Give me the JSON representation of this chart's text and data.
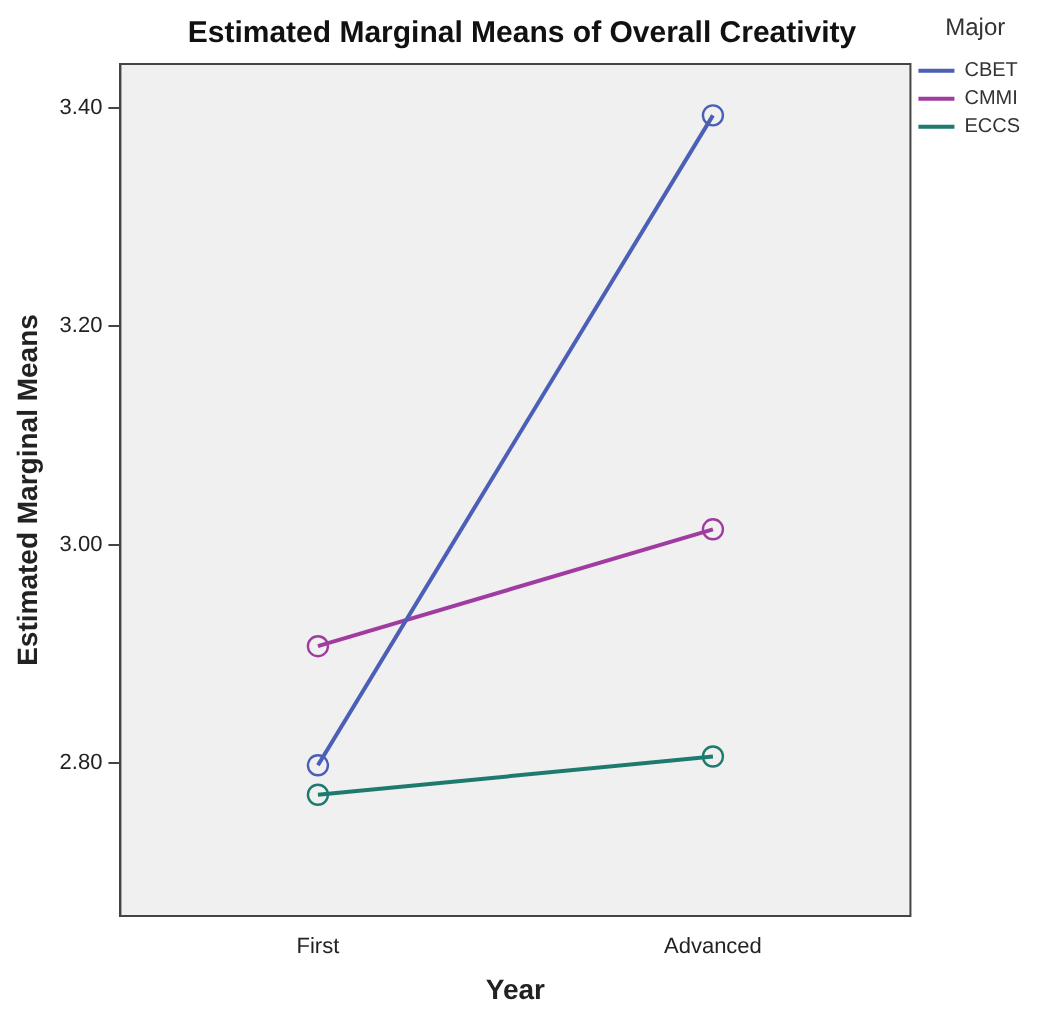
{
  "chart_data": {
    "type": "line",
    "title": "Estimated Marginal Means of Overall Creativity",
    "xlabel": "Year",
    "ylabel": "Estimated Marginal Means",
    "legend_title": "Major",
    "categories": [
      "First",
      "Advanced"
    ],
    "series": [
      {
        "name": "CBET",
        "color": "#4a5fb5",
        "values": [
          2.798,
          3.393
        ]
      },
      {
        "name": "CMMI",
        "color": "#a03ca0",
        "values": [
          2.907,
          3.014
        ]
      },
      {
        "name": "ECCS",
        "color": "#1e7a6e",
        "values": [
          2.771,
          2.806
        ]
      }
    ],
    "ylim": [
      2.66,
      3.44
    ],
    "yticks": [
      {
        "value": 2.8,
        "label": "2.80"
      },
      {
        "value": 3.0,
        "label": "3.00"
      },
      {
        "value": 3.2,
        "label": "3.20"
      },
      {
        "value": 3.4,
        "label": "3.40"
      }
    ],
    "grid": false,
    "legend": "right",
    "marker": "circle",
    "line_style": "solid"
  }
}
